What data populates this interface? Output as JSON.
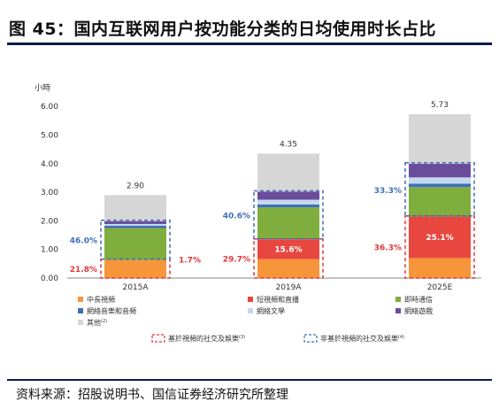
{
  "header": {
    "title": "图 45：国内互联网用户按功能分类的日均使用时长占比"
  },
  "footer": {
    "source": "资料来源：招股说明书、国信证券经济研究所整理"
  },
  "chart_data": {
    "type": "bar",
    "stacked": true,
    "ylabel": "小時",
    "ylim": [
      0,
      6
    ],
    "yticks": [
      "0.00",
      "1.00",
      "2.00",
      "3.00",
      "4.00",
      "5.00",
      "6.00"
    ],
    "categories": [
      "2015A",
      "2019A",
      "2025E"
    ],
    "series": [
      {
        "name": "中長視頻",
        "color": "#f6953a",
        "values": [
          0.63,
          0.66,
          0.7
        ]
      },
      {
        "name": "短視頻和直播",
        "color": "#e8473f",
        "values": [
          0.0,
          0.68,
          1.44
        ]
      },
      {
        "name": "即時通信",
        "color": "#7fae3e",
        "values": [
          1.12,
          1.13,
          1.04
        ]
      },
      {
        "name": "網絡音樂和音頻",
        "color": "#3e6fb6",
        "values": [
          0.08,
          0.1,
          0.12
        ]
      },
      {
        "name": "網絡文學",
        "color": "#c5d8ee",
        "values": [
          0.06,
          0.17,
          0.22
        ]
      },
      {
        "name": "網絡遊戲",
        "color": "#6a4c9c",
        "values": [
          0.1,
          0.28,
          0.48
        ]
      },
      {
        "name": "其他",
        "color": "#d6d6d6",
        "values": [
          0.91,
          1.33,
          1.73
        ]
      }
    ],
    "totals": [
      "2.90",
      "4.35",
      "5.73"
    ],
    "bar_labels": [
      {
        "category": "2015A",
        "series": "短視頻和直播",
        "text": ""
      },
      {
        "category": "2019A",
        "series": "短視頻和直播",
        "text": "15.6%"
      },
      {
        "category": "2025E",
        "series": "短視頻和直播",
        "text": "25.1%"
      }
    ],
    "group_labels": {
      "video_social": {
        "name": "基於視頻的社交及娛樂",
        "sup": "(3)",
        "color": "#e0383b",
        "values": [
          "21.8%",
          "29.7%",
          "36.3%"
        ]
      },
      "nonvideo_social": {
        "name": "非基於視頻的社交及娛樂",
        "sup": "(4)",
        "color": "#3e6fb6",
        "values": [
          "46.0%",
          "40.6%",
          "33.3%"
        ]
      }
    },
    "extra_label_2015A": "1.7%",
    "other_sup": "(2)"
  }
}
